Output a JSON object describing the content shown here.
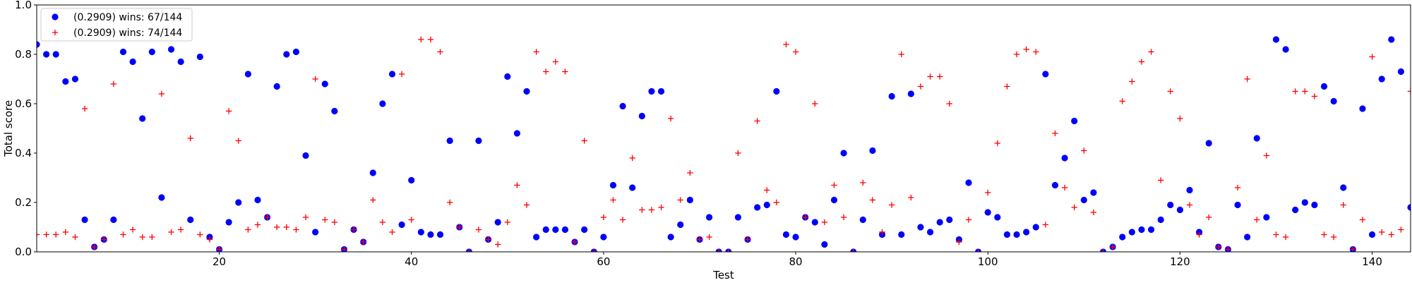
{
  "chart_data": {
    "type": "scatter",
    "title": "",
    "xlabel": "Test",
    "ylabel": "Total score",
    "xlim": [
      1,
      144
    ],
    "ylim": [
      0.0,
      1.0
    ],
    "grid": false,
    "legend_placement": "top-left",
    "xticks": [
      20,
      40,
      60,
      80,
      100,
      120,
      140
    ],
    "yticks": [
      0.0,
      0.2,
      0.4,
      0.6,
      0.8,
      1.0
    ],
    "x": [
      1,
      2,
      3,
      4,
      5,
      6,
      7,
      8,
      9,
      10,
      11,
      12,
      13,
      14,
      15,
      16,
      17,
      18,
      19,
      20,
      21,
      22,
      23,
      24,
      25,
      26,
      27,
      28,
      29,
      30,
      31,
      32,
      33,
      34,
      35,
      36,
      37,
      38,
      39,
      40,
      41,
      42,
      43,
      44,
      45,
      46,
      47,
      48,
      49,
      50,
      51,
      52,
      53,
      54,
      55,
      56,
      57,
      58,
      59,
      60,
      61,
      62,
      63,
      64,
      65,
      66,
      67,
      68,
      69,
      70,
      71,
      72,
      73,
      74,
      75,
      76,
      77,
      78,
      79,
      80,
      81,
      82,
      83,
      84,
      85,
      86,
      87,
      88,
      89,
      90,
      91,
      92,
      93,
      94,
      95,
      96,
      97,
      98,
      99,
      100,
      101,
      102,
      103,
      104,
      105,
      106,
      107,
      108,
      109,
      110,
      111,
      112,
      113,
      114,
      115,
      116,
      117,
      118,
      119,
      120,
      121,
      122,
      123,
      124,
      125,
      126,
      127,
      128,
      129,
      130,
      131,
      132,
      133,
      134,
      135,
      136,
      137,
      138,
      139,
      140,
      141,
      142,
      143,
      144
    ],
    "series": [
      {
        "name": "(0.2909) wins: 67/144",
        "marker": "circle",
        "color": "#0000ff",
        "values": [
          0.84,
          0.8,
          0.8,
          0.69,
          0.7,
          0.13,
          0.02,
          0.05,
          0.13,
          0.81,
          0.77,
          0.54,
          0.81,
          0.22,
          0.82,
          0.77,
          0.13,
          0.79,
          0.06,
          0.01,
          0.12,
          0.2,
          0.72,
          0.21,
          0.14,
          0.67,
          0.8,
          0.81,
          0.39,
          0.08,
          0.68,
          0.57,
          0.01,
          0.09,
          0.04,
          0.32,
          0.6,
          0.72,
          0.11,
          0.29,
          0.08,
          0.07,
          0.07,
          0.45,
          0.1,
          0.0,
          0.45,
          0.05,
          0.12,
          0.71,
          0.48,
          0.65,
          0.06,
          0.09,
          0.09,
          0.09,
          0.04,
          0.09,
          0.0,
          0.06,
          0.27,
          0.59,
          0.26,
          0.55,
          0.65,
          0.65,
          0.06,
          0.11,
          0.21,
          0.05,
          0.14,
          0.0,
          0.0,
          0.14,
          0.05,
          0.18,
          0.19,
          0.65,
          0.07,
          0.06,
          0.14,
          0.12,
          0.03,
          0.21,
          0.4,
          0.0,
          0.13,
          0.41,
          0.07,
          0.63,
          0.07,
          0.64,
          0.1,
          0.08,
          0.12,
          0.13,
          0.05,
          0.28,
          0.0,
          0.16,
          0.14,
          0.07,
          0.07,
          0.08,
          0.1,
          0.72,
          0.27,
          0.38,
          0.53,
          0.21,
          0.24,
          0.0,
          0.02,
          0.06,
          0.08,
          0.09,
          0.09,
          0.13,
          0.19,
          0.17,
          0.25,
          0.08,
          0.44,
          0.02,
          0.01,
          0.19,
          0.06,
          0.46,
          0.14,
          0.86,
          0.82,
          0.17,
          0.2,
          0.19,
          0.67,
          0.61,
          0.26,
          0.01,
          0.58,
          0.07,
          0.7,
          0.86,
          0.73,
          0.18
        ]
      },
      {
        "name": "(0.2909) wins: 74/144",
        "marker": "plus",
        "color": "#ff0000",
        "values": [
          0.07,
          0.07,
          0.07,
          0.08,
          0.06,
          0.58,
          0.02,
          0.05,
          0.68,
          0.07,
          0.09,
          0.06,
          0.06,
          0.64,
          0.08,
          0.09,
          0.46,
          0.07,
          0.05,
          0.01,
          0.57,
          0.45,
          0.09,
          0.11,
          0.14,
          0.1,
          0.1,
          0.09,
          0.14,
          0.7,
          0.13,
          0.12,
          0.01,
          0.09,
          0.04,
          0.21,
          0.12,
          0.08,
          0.72,
          0.13,
          0.86,
          0.86,
          0.81,
          0.2,
          0.1,
          0.0,
          0.09,
          0.05,
          0.03,
          0.12,
          0.27,
          0.19,
          0.81,
          0.73,
          0.77,
          0.73,
          0.04,
          0.45,
          0.0,
          0.14,
          0.21,
          0.13,
          0.38,
          0.17,
          0.17,
          0.18,
          0.54,
          0.21,
          0.32,
          0.05,
          0.06,
          0.0,
          0.0,
          0.4,
          0.05,
          0.53,
          0.25,
          0.2,
          0.84,
          0.81,
          0.14,
          0.6,
          0.12,
          0.27,
          0.14,
          0.0,
          0.28,
          0.21,
          0.08,
          0.19,
          0.8,
          0.22,
          0.67,
          0.71,
          0.71,
          0.6,
          0.04,
          0.13,
          0.0,
          0.24,
          0.44,
          0.67,
          0.8,
          0.82,
          0.81,
          0.11,
          0.48,
          0.26,
          0.18,
          0.41,
          0.16,
          0.0,
          0.02,
          0.61,
          0.69,
          0.77,
          0.81,
          0.29,
          0.65,
          0.54,
          0.19,
          0.07,
          0.14,
          0.02,
          0.01,
          0.26,
          0.7,
          0.13,
          0.39,
          0.07,
          0.06,
          0.65,
          0.65,
          0.63,
          0.07,
          0.06,
          0.19,
          0.01,
          0.13,
          0.79,
          0.08,
          0.07,
          0.09,
          0.65
        ]
      }
    ]
  }
}
